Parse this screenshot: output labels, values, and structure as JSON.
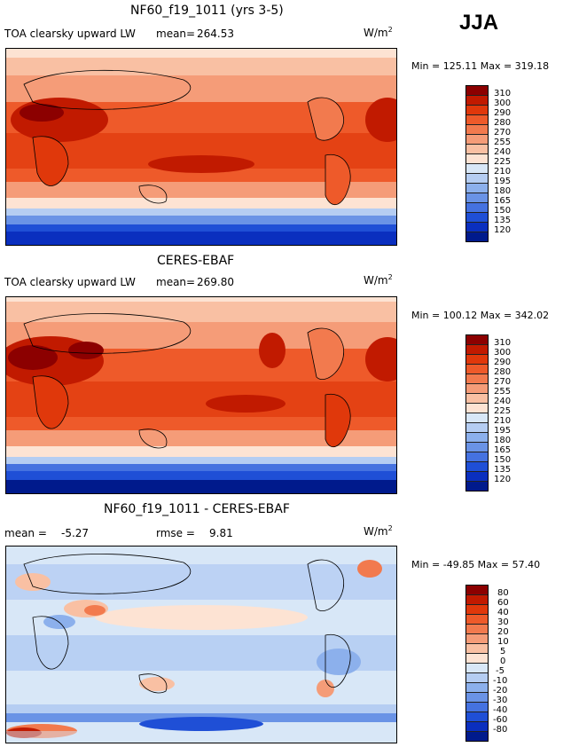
{
  "season": "JJA",
  "panels": [
    {
      "title": "NF60_f19_1011 (yrs 3-5)",
      "left_label": "TOA clearsky upward LW",
      "stat_label": "mean=",
      "stat_value": "264.53",
      "units": "W/m",
      "units_sup": "2",
      "minmax": "Min = 125.11 Max = 319.18",
      "ticks": [
        "310",
        "300",
        "290",
        "280",
        "270",
        "255",
        "240",
        "225",
        "210",
        "195",
        "180",
        "165",
        "150",
        "135",
        "120"
      ],
      "palette": [
        "#8c0000",
        "#c11a00",
        "#e0380b",
        "#ee5a2a",
        "#f27a4e",
        "#f59c78",
        "#f9c0a3",
        "#fde3d3",
        "#d8e7f7",
        "#b5cdf2",
        "#8cb0ec",
        "#6a93e6",
        "#4572e0",
        "#1f4fd6",
        "#0a2fbf",
        "#001a8c"
      ]
    },
    {
      "title": "CERES-EBAF",
      "left_label": "TOA clearsky upward LW",
      "stat_label": "mean=",
      "stat_value": "269.80",
      "units": "W/m",
      "units_sup": "2",
      "minmax": "Min = 100.12 Max = 342.02",
      "ticks": [
        "310",
        "300",
        "290",
        "280",
        "270",
        "255",
        "240",
        "225",
        "210",
        "195",
        "180",
        "165",
        "150",
        "135",
        "120"
      ],
      "palette": [
        "#8c0000",
        "#c11a00",
        "#e0380b",
        "#ee5a2a",
        "#f27a4e",
        "#f59c78",
        "#f9c0a3",
        "#fde3d3",
        "#d8e7f7",
        "#b5cdf2",
        "#8cb0ec",
        "#6a93e6",
        "#4572e0",
        "#1f4fd6",
        "#0a2fbf",
        "#001a8c"
      ]
    },
    {
      "title": "NF60_f19_1011 - CERES-EBAF",
      "left_label": "mean =",
      "stat_value_left": "-5.27",
      "stat_label": "rmse =",
      "stat_value": "9.81",
      "units": "W/m",
      "units_sup": "2",
      "minmax": "Min = -49.85 Max =  57.40",
      "ticks": [
        "80",
        "60",
        "40",
        "30",
        "20",
        "10",
        "5",
        "0",
        "-5",
        "-10",
        "-20",
        "-30",
        "-40",
        "-60",
        "-80"
      ],
      "palette": [
        "#8c0000",
        "#c11a00",
        "#e0380b",
        "#ee5a2a",
        "#f27a4e",
        "#f59c78",
        "#f9c0a3",
        "#fde3d3",
        "#d8e7f7",
        "#b5cdf2",
        "#8cb0ec",
        "#6a93e6",
        "#4572e0",
        "#1f4fd6",
        "#0a2fbf",
        "#001a8c"
      ]
    }
  ]
}
